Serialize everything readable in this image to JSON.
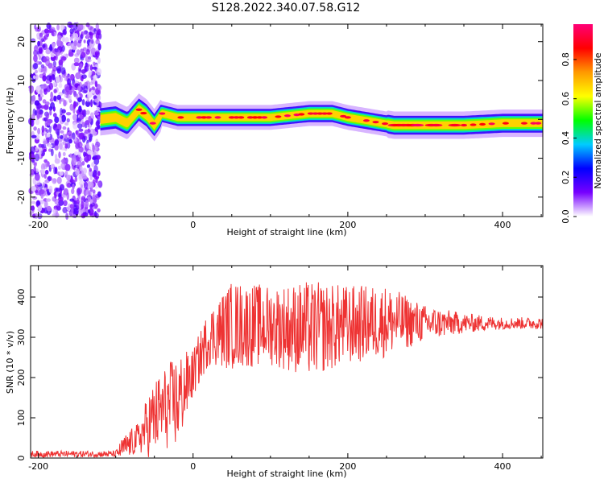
{
  "title": "S128.2022.340.07.58.G12",
  "colors": {
    "snr_line": "#ee3333",
    "axis": "#000000"
  },
  "chart_data": [
    {
      "type": "heatmap",
      "xlabel": "Height of straight line (km)",
      "ylabel": "Frequency (Hz)",
      "xlim": [
        -210,
        452
      ],
      "ylim": [
        -25,
        24.5
      ],
      "x_ticks": [
        -200,
        0,
        200,
        400
      ],
      "y_ticks": [
        -20,
        -10,
        0,
        10,
        20
      ],
      "colorbar": {
        "label": "Normalized spectral amplitude",
        "range": [
          0,
          1
        ],
        "ticks": [
          "0.0",
          "0.2",
          "0.4",
          "0.6",
          "0.8"
        ],
        "colormap": [
          "#ffffff",
          "#7700ff",
          "#0000ff",
          "#00ccff",
          "#00ff00",
          "#ffff00",
          "#ff9900",
          "#ff0000",
          "#ff0077"
        ]
      },
      "noise_region_x": [
        -210,
        -120
      ],
      "ridge": [
        {
          "x": -120,
          "f": 0.0
        },
        {
          "x": -100,
          "f": 0.5
        },
        {
          "x": -85,
          "f": -1.0
        },
        {
          "x": -70,
          "f": 2.5
        },
        {
          "x": -60,
          "f": 1.0
        },
        {
          "x": -50,
          "f": -1.5
        },
        {
          "x": -40,
          "f": 1.5
        },
        {
          "x": -20,
          "f": 0.5
        },
        {
          "x": 0,
          "f": 0.5
        },
        {
          "x": 50,
          "f": 0.5
        },
        {
          "x": 100,
          "f": 0.5
        },
        {
          "x": 150,
          "f": 1.5
        },
        {
          "x": 180,
          "f": 1.5
        },
        {
          "x": 200,
          "f": 0.5
        },
        {
          "x": 230,
          "f": -0.5
        },
        {
          "x": 260,
          "f": -1.5
        },
        {
          "x": 300,
          "f": -1.5
        },
        {
          "x": 350,
          "f": -1.5
        },
        {
          "x": 400,
          "f": -1.0
        },
        {
          "x": 452,
          "f": -1.0
        }
      ]
    },
    {
      "type": "line",
      "xlabel": "Height of straight line (km)",
      "ylabel": "SNR (10 * v/v)",
      "xlim": [
        -210,
        452
      ],
      "ylim": [
        0,
        478
      ],
      "x_ticks": [
        -200,
        0,
        200,
        400
      ],
      "y_ticks": [
        0,
        100,
        200,
        300,
        400
      ],
      "series": [
        {
          "color": "#ee3333",
          "envelope": [
            {
              "x": -210,
              "mean": 10,
              "amp": 8
            },
            {
              "x": -100,
              "mean": 10,
              "amp": 8
            },
            {
              "x": -90,
              "mean": 25,
              "amp": 30
            },
            {
              "x": -70,
              "mean": 50,
              "amp": 40
            },
            {
              "x": -55,
              "mean": 90,
              "amp": 90
            },
            {
              "x": -40,
              "mean": 120,
              "amp": 100
            },
            {
              "x": -20,
              "mean": 140,
              "amp": 120
            },
            {
              "x": 0,
              "mean": 210,
              "amp": 60
            },
            {
              "x": 20,
              "mean": 300,
              "amp": 70
            },
            {
              "x": 50,
              "mean": 330,
              "amp": 110
            },
            {
              "x": 100,
              "mean": 330,
              "amp": 100
            },
            {
              "x": 150,
              "mean": 320,
              "amp": 120
            },
            {
              "x": 200,
              "mean": 330,
              "amp": 100
            },
            {
              "x": 250,
              "mean": 340,
              "amp": 90
            },
            {
              "x": 300,
              "mean": 335,
              "amp": 45
            },
            {
              "x": 350,
              "mean": 335,
              "amp": 25
            },
            {
              "x": 400,
              "mean": 335,
              "amp": 15
            },
            {
              "x": 452,
              "mean": 335,
              "amp": 15
            }
          ]
        }
      ]
    }
  ]
}
